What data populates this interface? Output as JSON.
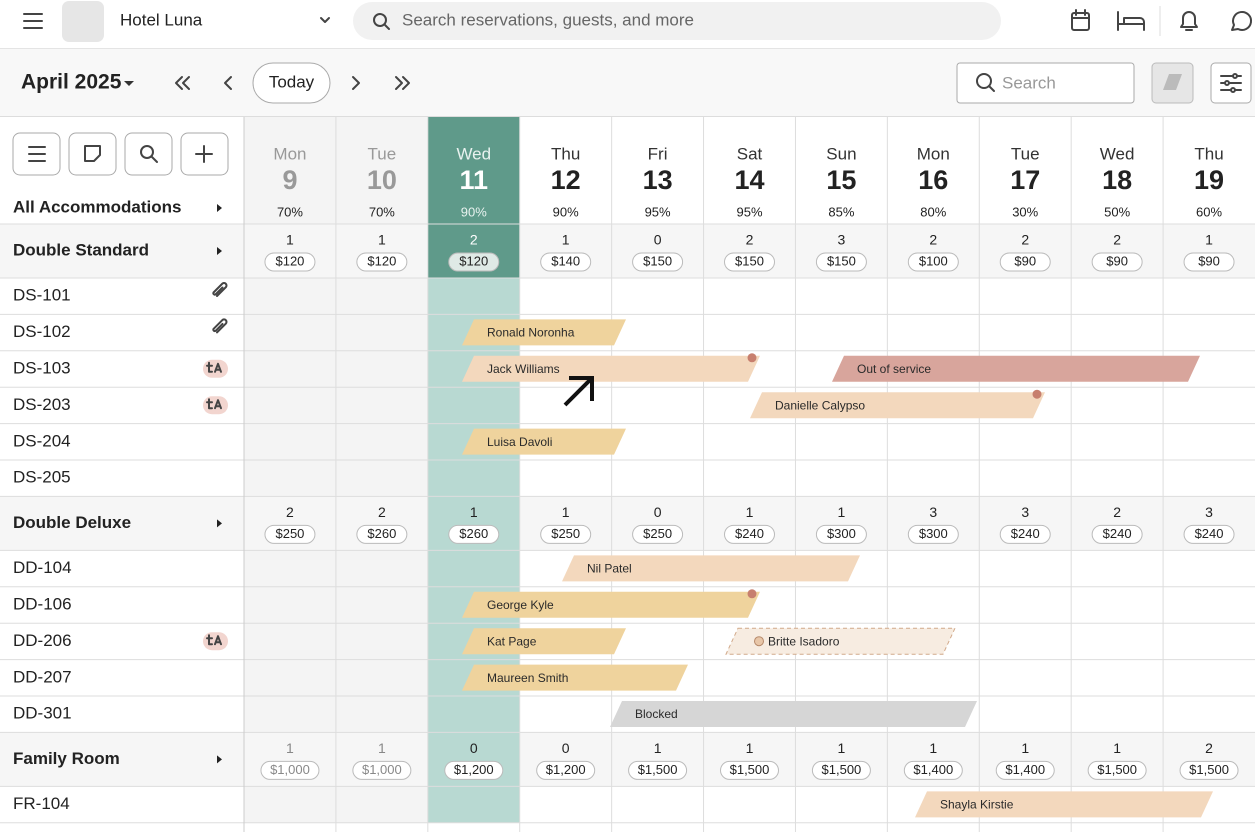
{
  "header": {
    "hotel": "Hotel Luna",
    "search_placeholder": "Search reservations, guests, and more"
  },
  "toolbar": {
    "month": "April 2025",
    "today": "Today",
    "search_placeholder": "Search"
  },
  "calendar": {
    "all_label": "All Accommodations",
    "days": [
      {
        "weekday": "Mon",
        "day": "9",
        "occupancy": "70%",
        "state": "past"
      },
      {
        "weekday": "Tue",
        "day": "10",
        "occupancy": "70%",
        "state": "past"
      },
      {
        "weekday": "Wed",
        "day": "11",
        "occupancy": "90%",
        "state": "today"
      },
      {
        "weekday": "Thu",
        "day": "12",
        "occupancy": "90%",
        "state": "future"
      },
      {
        "weekday": "Fri",
        "day": "13",
        "occupancy": "95%",
        "state": "future"
      },
      {
        "weekday": "Sat",
        "day": "14",
        "occupancy": "95%",
        "state": "future"
      },
      {
        "weekday": "Sun",
        "day": "15",
        "occupancy": "85%",
        "state": "future"
      },
      {
        "weekday": "Mon",
        "day": "16",
        "occupancy": "80%",
        "state": "future"
      },
      {
        "weekday": "Tue",
        "day": "17",
        "occupancy": "30%",
        "state": "future"
      },
      {
        "weekday": "Wed",
        "day": "18",
        "occupancy": "50%",
        "state": "future"
      },
      {
        "weekday": "Thu",
        "day": "19",
        "occupancy": "60%",
        "state": "future"
      }
    ],
    "groups": [
      {
        "name": "Double Standard",
        "availability": [
          {
            "count": "1",
            "price": "$120"
          },
          {
            "count": "1",
            "price": "$120"
          },
          {
            "count": "2",
            "price": "$120"
          },
          {
            "count": "1",
            "price": "$140"
          },
          {
            "count": "0",
            "price": "$150"
          },
          {
            "count": "2",
            "price": "$150"
          },
          {
            "count": "3",
            "price": "$150"
          },
          {
            "count": "2",
            "price": "$100"
          },
          {
            "count": "2",
            "price": "$90"
          },
          {
            "count": "2",
            "price": "$90"
          },
          {
            "count": "1",
            "price": "$90"
          }
        ],
        "rooms": [
          {
            "name": "DS-101",
            "icon": "link",
            "bookings": []
          },
          {
            "name": "DS-102",
            "icon": "link",
            "bookings": [
              {
                "guest": "Ronald Noronha",
                "kind": "confirmed"
              }
            ]
          },
          {
            "name": "DS-103",
            "icon": "language",
            "bookings": [
              {
                "guest": "Jack Williams",
                "kind": "pending",
                "flag": true
              },
              {
                "guest": "Out of service",
                "kind": "out-of-service"
              }
            ]
          },
          {
            "name": "DS-203",
            "icon": "language",
            "bookings": [
              {
                "guest": "Danielle Calypso",
                "kind": "pending",
                "flag": true
              }
            ]
          },
          {
            "name": "DS-204",
            "bookings": [
              {
                "guest": "Luisa Davoli",
                "kind": "confirmed"
              }
            ]
          },
          {
            "name": "DS-205",
            "bookings": []
          }
        ]
      },
      {
        "name": "Double Deluxe",
        "availability": [
          {
            "count": "2",
            "price": "$250"
          },
          {
            "count": "2",
            "price": "$260"
          },
          {
            "count": "1",
            "price": "$260"
          },
          {
            "count": "1",
            "price": "$250"
          },
          {
            "count": "0",
            "price": "$250"
          },
          {
            "count": "1",
            "price": "$240"
          },
          {
            "count": "1",
            "price": "$300"
          },
          {
            "count": "3",
            "price": "$300"
          },
          {
            "count": "3",
            "price": "$240"
          },
          {
            "count": "2",
            "price": "$240"
          },
          {
            "count": "3",
            "price": "$240"
          }
        ],
        "rooms": [
          {
            "name": "DD-104",
            "bookings": [
              {
                "guest": "Nil Patel",
                "kind": "pending"
              }
            ]
          },
          {
            "name": "DD-106",
            "bookings": [
              {
                "guest": "George Kyle",
                "kind": "confirmed",
                "flag": true
              }
            ]
          },
          {
            "name": "DD-206",
            "icon": "language",
            "bookings": [
              {
                "guest": "Kat Page",
                "kind": "confirmed"
              },
              {
                "guest": "Britte Isadoro",
                "kind": "tentative"
              }
            ]
          },
          {
            "name": "DD-207",
            "bookings": [
              {
                "guest": "Maureen Smith",
                "kind": "confirmed"
              }
            ]
          },
          {
            "name": "DD-301",
            "bookings": [
              {
                "guest": "Blocked",
                "kind": "blocked"
              }
            ]
          }
        ]
      },
      {
        "name": "Family Room",
        "availability": [
          {
            "count": "1",
            "price": "$1,000"
          },
          {
            "count": "1",
            "price": "$1,000"
          },
          {
            "count": "0",
            "price": "$1,200"
          },
          {
            "count": "0",
            "price": "$1,200"
          },
          {
            "count": "1",
            "price": "$1,500"
          },
          {
            "count": "1",
            "price": "$1,500"
          },
          {
            "count": "1",
            "price": "$1,500"
          },
          {
            "count": "1",
            "price": "$1,400"
          },
          {
            "count": "1",
            "price": "$1,400"
          },
          {
            "count": "1",
            "price": "$1,500"
          },
          {
            "count": "2",
            "price": "$1,500"
          }
        ],
        "rooms": [
          {
            "name": "FR-104",
            "bookings": [
              {
                "guest": "Shayla Kirstie",
                "kind": "pending"
              }
            ]
          }
        ]
      }
    ]
  }
}
